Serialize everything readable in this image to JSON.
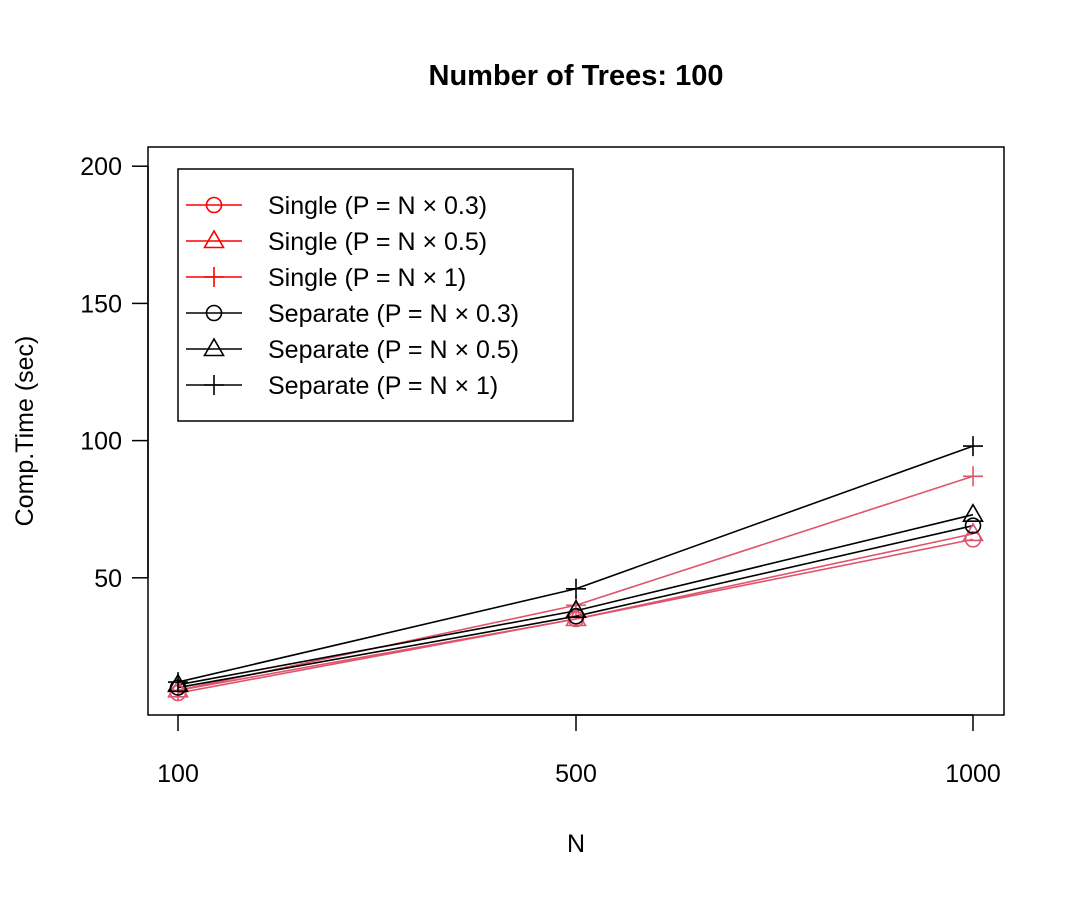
{
  "chart_data": {
    "type": "line",
    "title": "Number of Trees: 100",
    "xlabel": "N",
    "ylabel": "Comp.Time (sec)",
    "x": [
      100,
      500,
      1000
    ],
    "x_tick_labels": [
      "100",
      "500",
      "1000"
    ],
    "y_ticks": [
      50,
      100,
      150,
      200
    ],
    "y_tick_labels": [
      "50",
      "100",
      "150",
      "200"
    ],
    "ylim": [
      0,
      207
    ],
    "grid": false,
    "legend_position": "top-left",
    "colors": {
      "single": "#df536b",
      "single_legend": "#ff0000",
      "separate": "#000000"
    },
    "series": [
      {
        "name": "Single (P = N × 0.3)",
        "group": "single",
        "marker": "circle",
        "values": [
          8,
          35,
          64
        ]
      },
      {
        "name": "Single (P = N × 0.5)",
        "group": "single",
        "marker": "triangle",
        "values": [
          9,
          35,
          66
        ]
      },
      {
        "name": "Single (P = N × 1)",
        "group": "single",
        "marker": "plus",
        "values": [
          9,
          40,
          87
        ]
      },
      {
        "name": "Separate (P = N × 0.3)",
        "group": "separate",
        "marker": "circle",
        "values": [
          10,
          36,
          69
        ]
      },
      {
        "name": "Separate (P = N × 0.5)",
        "group": "separate",
        "marker": "triangle",
        "values": [
          11,
          38,
          73
        ]
      },
      {
        "name": "Separate (P = N × 1)",
        "group": "separate",
        "marker": "plus",
        "values": [
          12,
          46,
          98
        ]
      }
    ]
  }
}
